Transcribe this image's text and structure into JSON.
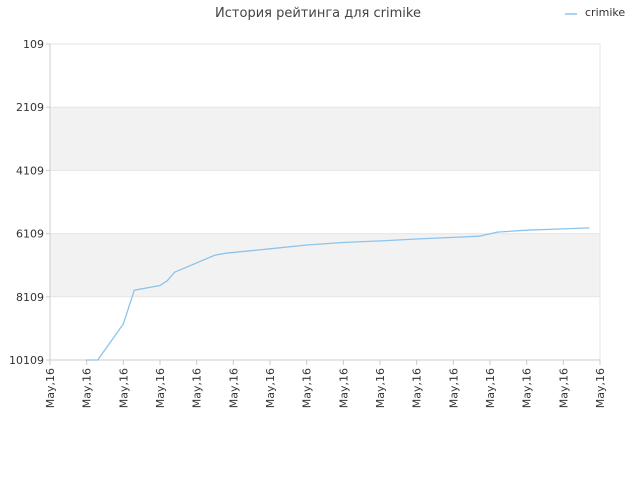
{
  "chart_data": {
    "type": "line",
    "title": "История рейтинга для crimike",
    "xlabel": "",
    "ylabel": "",
    "y_reversed": true,
    "ylim": [
      109,
      10109
    ],
    "y_ticks": [
      "109",
      "2109",
      "4109",
      "6109",
      "8109",
      "10109"
    ],
    "x_ticks": [
      "May,16",
      "May,16",
      "May,16",
      "May,16",
      "May,16",
      "May,16",
      "May,16",
      "May,16",
      "May,16",
      "May,16",
      "May,16",
      "May,16",
      "May,16",
      "May,16",
      "May,16",
      "May,16"
    ],
    "grid": "alternating horizontal bands",
    "legend_position": "top-right",
    "colors": {
      "line": "#8cc4ec",
      "band": "#f2f2f2",
      "axis": "#cccccc"
    },
    "series": [
      {
        "name": "crimike",
        "x": [
          1.0,
          1.3,
          2.0,
          2.3,
          3.0,
          3.2,
          3.4,
          4.5,
          4.8,
          6.0,
          7.0,
          8.0,
          9.0,
          10.0,
          11.0,
          11.7,
          12.2,
          13.0,
          14.0,
          14.7
        ],
        "values": [
          10109,
          10109,
          8970,
          7900,
          7750,
          7600,
          7330,
          6790,
          6730,
          6590,
          6470,
          6390,
          6340,
          6280,
          6230,
          6190,
          6060,
          6000,
          5960,
          5930
        ]
      }
    ]
  }
}
